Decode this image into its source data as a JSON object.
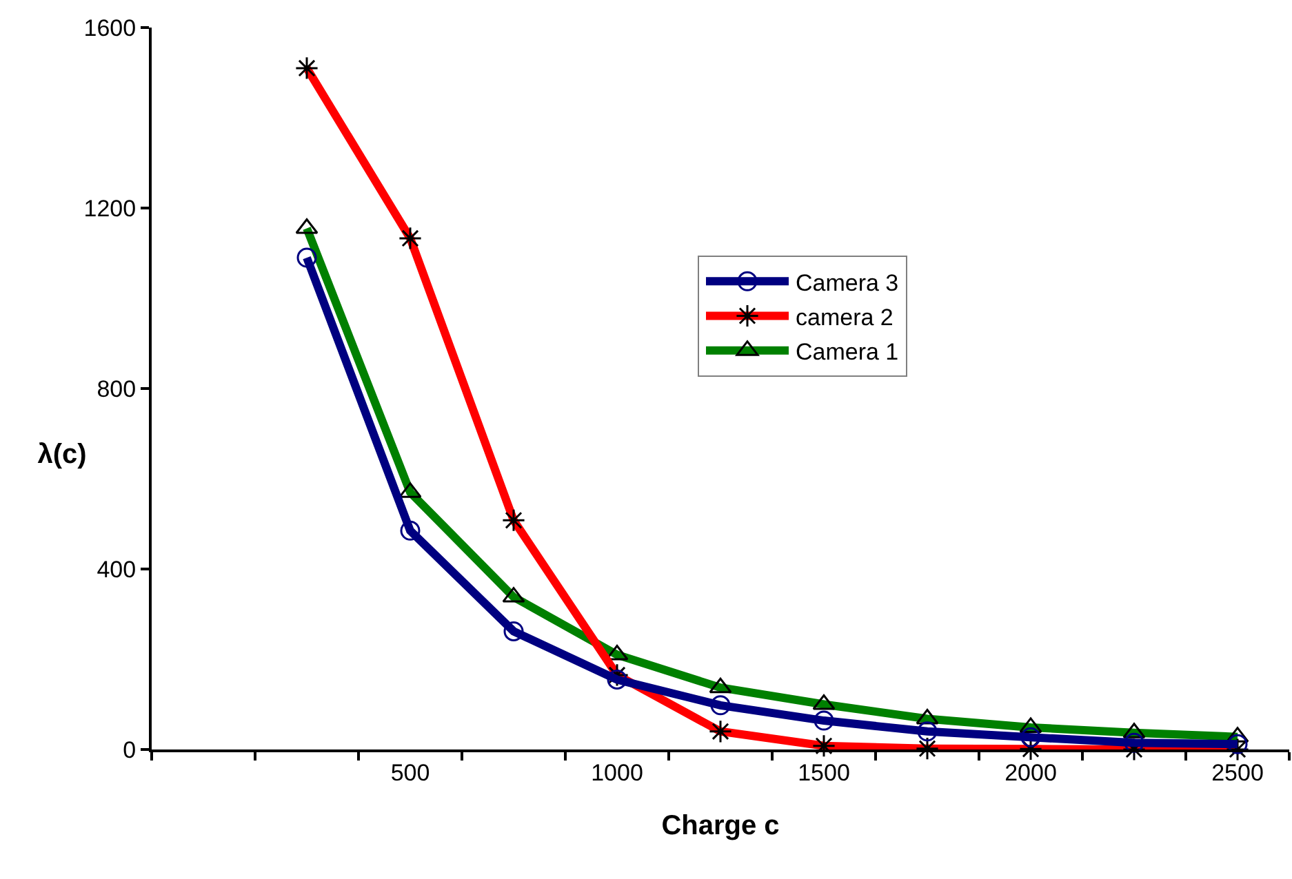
{
  "chart_data": {
    "type": "line",
    "xlabel": "Charge c",
    "ylabel": "λ(c)",
    "categories": [
      null,
      null,
      "500",
      null,
      "1000",
      null,
      "1500",
      null,
      "2000",
      null,
      "2500"
    ],
    "series": [
      {
        "name": "Camera 3",
        "color": "#000080",
        "marker": "circle",
        "values": [
          null,
          1090,
          485,
          262,
          155,
          98,
          64,
          40,
          27,
          15,
          12
        ]
      },
      {
        "name": "camera 2",
        "color": "#ff0000",
        "marker": "cross",
        "values": [
          null,
          1510,
          1133,
          508,
          165,
          40,
          8,
          2,
          1,
          0,
          0
        ]
      },
      {
        "name": "Camera 1",
        "color": "#008000",
        "marker": "triangle",
        "values": [
          null,
          1155,
          570,
          338,
          210,
          137,
          100,
          68,
          49,
          37,
          28
        ]
      }
    ],
    "ylim": [
      0,
      1600
    ],
    "yticks": [
      0,
      400,
      800,
      1200,
      1600
    ],
    "grid": false,
    "legend": "center",
    "line_style": "solid"
  }
}
